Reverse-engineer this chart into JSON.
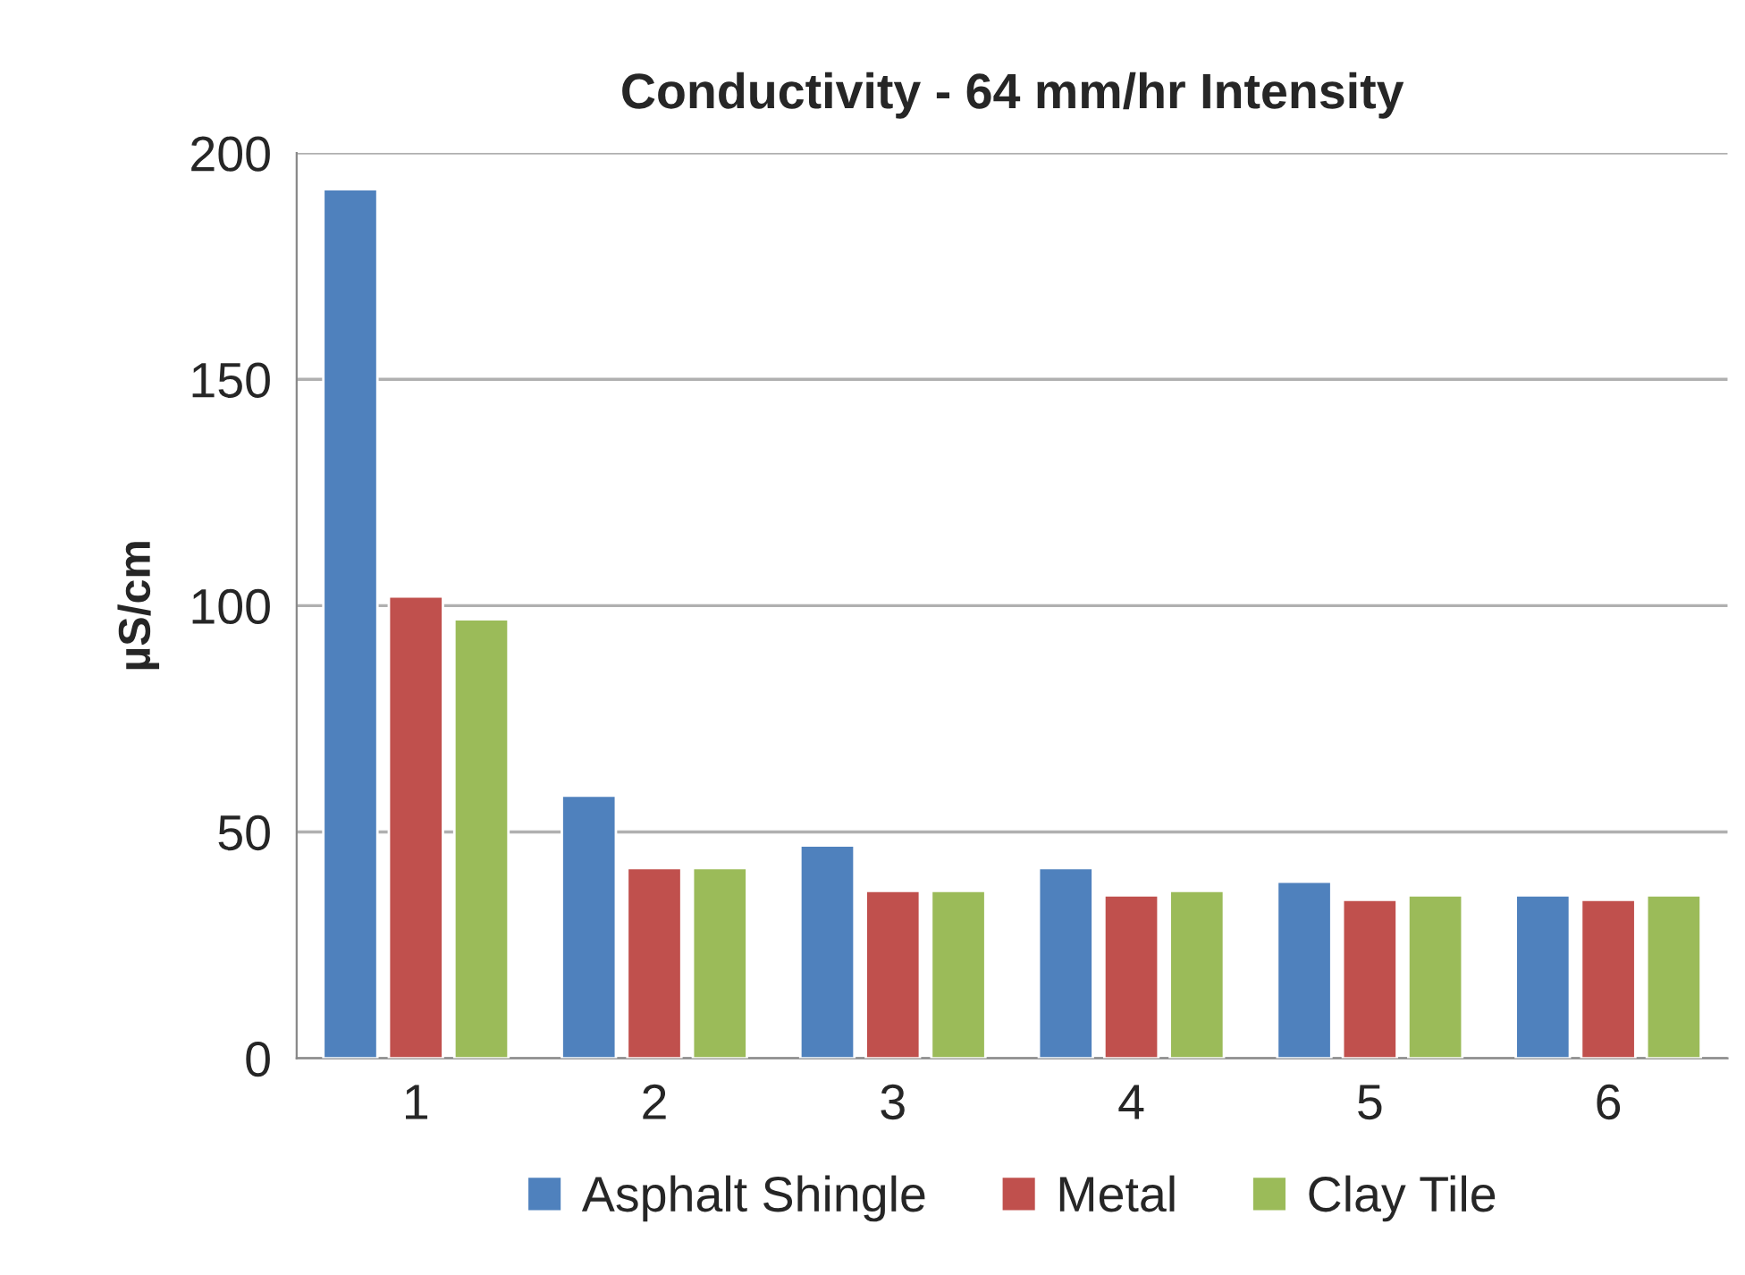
{
  "chart_data": {
    "type": "bar",
    "title": "Conductivity - 64 mm/hr Intensity",
    "ylabel": "µS/cm",
    "categories": [
      "1",
      "2",
      "3",
      "4",
      "5",
      "6"
    ],
    "series": [
      {
        "name": "Asphalt Shingle",
        "color": "#4f81bd",
        "values": [
          192,
          58,
          47,
          42,
          39,
          36
        ]
      },
      {
        "name": "Metal",
        "color": "#c0504d",
        "values": [
          102,
          42,
          37,
          36,
          35,
          35
        ]
      },
      {
        "name": "Clay Tile",
        "color": "#9bbb59",
        "values": [
          97,
          42,
          37,
          37,
          36,
          36
        ]
      }
    ],
    "ylim": [
      0,
      200
    ],
    "yticks": [
      0,
      50,
      100,
      150,
      200
    ],
    "grid": "y",
    "legend": "bottom"
  }
}
